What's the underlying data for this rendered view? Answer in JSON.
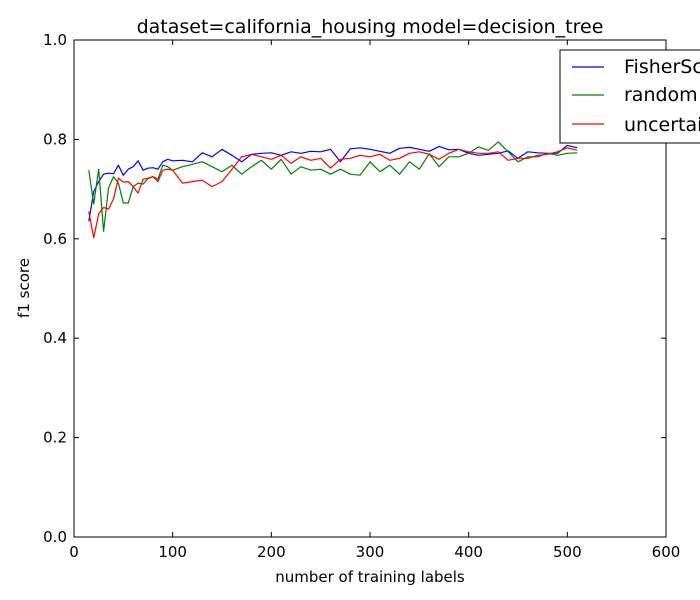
{
  "chart_data": {
    "type": "line",
    "title": "dataset=california_housing model=decision_tree",
    "xlabel": "number of training labels",
    "ylabel": "f1 score",
    "xlim": [
      0,
      600
    ],
    "ylim": [
      0.0,
      1.0
    ],
    "xticks": [
      "0",
      "100",
      "200",
      "300",
      "400",
      "500",
      "600"
    ],
    "yticks": [
      "0.0",
      "0.2",
      "0.4",
      "0.6",
      "0.8",
      "1.0"
    ],
    "grid": false,
    "legend_position": "top-right",
    "series": [
      {
        "name": "FisherScore",
        "color": "#0000ff",
        "x": [
          15,
          20,
          25,
          30,
          35,
          40,
          45,
          50,
          55,
          60,
          65,
          70,
          75,
          80,
          85,
          90,
          95,
          100,
          110,
          120,
          130,
          140,
          150,
          160,
          170,
          180,
          190,
          200,
          210,
          220,
          230,
          240,
          250,
          260,
          270,
          280,
          290,
          300,
          310,
          320,
          330,
          340,
          350,
          360,
          370,
          380,
          390,
          400,
          410,
          420,
          430,
          440,
          450,
          460,
          470,
          480,
          490,
          500,
          510
        ],
        "values": [
          0.635,
          0.695,
          0.715,
          0.73,
          0.732,
          0.731,
          0.748,
          0.728,
          0.74,
          0.745,
          0.757,
          0.738,
          0.742,
          0.743,
          0.74,
          0.755,
          0.76,
          0.757,
          0.758,
          0.755,
          0.773,
          0.765,
          0.78,
          0.768,
          0.755,
          0.77,
          0.772,
          0.773,
          0.768,
          0.775,
          0.772,
          0.776,
          0.775,
          0.78,
          0.755,
          0.781,
          0.783,
          0.78,
          0.776,
          0.772,
          0.782,
          0.784,
          0.78,
          0.776,
          0.786,
          0.779,
          0.78,
          0.772,
          0.768,
          0.77,
          0.772,
          0.777,
          0.762,
          0.775,
          0.773,
          0.772,
          0.772,
          0.788,
          0.783
        ]
      },
      {
        "name": "random",
        "color": "#008000",
        "x": [
          15,
          20,
          25,
          30,
          35,
          40,
          45,
          50,
          55,
          60,
          65,
          70,
          75,
          80,
          85,
          90,
          95,
          100,
          110,
          120,
          130,
          140,
          150,
          160,
          170,
          180,
          190,
          200,
          210,
          220,
          230,
          240,
          250,
          260,
          270,
          280,
          290,
          300,
          310,
          320,
          330,
          340,
          350,
          360,
          370,
          380,
          390,
          400,
          410,
          420,
          430,
          440,
          450,
          460,
          470,
          480,
          490,
          500,
          510
        ],
        "values": [
          0.738,
          0.67,
          0.74,
          0.615,
          0.702,
          0.725,
          0.712,
          0.672,
          0.672,
          0.705,
          0.712,
          0.71,
          0.721,
          0.725,
          0.72,
          0.748,
          0.745,
          0.738,
          0.745,
          0.75,
          0.755,
          0.745,
          0.735,
          0.748,
          0.73,
          0.745,
          0.758,
          0.74,
          0.76,
          0.73,
          0.745,
          0.738,
          0.74,
          0.73,
          0.74,
          0.73,
          0.728,
          0.755,
          0.735,
          0.748,
          0.73,
          0.755,
          0.74,
          0.771,
          0.745,
          0.765,
          0.765,
          0.772,
          0.785,
          0.778,
          0.795,
          0.775,
          0.755,
          0.765,
          0.765,
          0.772,
          0.768,
          0.772,
          0.773
        ]
      },
      {
        "name": "uncertainty",
        "color": "#ff0000",
        "x": [
          15,
          20,
          25,
          30,
          35,
          40,
          45,
          50,
          55,
          60,
          65,
          70,
          75,
          80,
          85,
          90,
          95,
          100,
          110,
          120,
          130,
          140,
          150,
          160,
          170,
          180,
          190,
          200,
          210,
          220,
          230,
          240,
          250,
          260,
          270,
          280,
          290,
          300,
          310,
          320,
          330,
          340,
          350,
          360,
          370,
          380,
          390,
          400,
          410,
          420,
          430,
          440,
          450,
          460,
          470,
          480,
          490,
          500,
          510
        ],
        "values": [
          0.655,
          0.602,
          0.65,
          0.663,
          0.66,
          0.68,
          0.722,
          0.714,
          0.715,
          0.705,
          0.692,
          0.72,
          0.722,
          0.725,
          0.715,
          0.738,
          0.74,
          0.738,
          0.712,
          0.715,
          0.718,
          0.705,
          0.715,
          0.74,
          0.765,
          0.77,
          0.765,
          0.76,
          0.768,
          0.752,
          0.765,
          0.758,
          0.762,
          0.742,
          0.76,
          0.762,
          0.768,
          0.765,
          0.77,
          0.758,
          0.762,
          0.772,
          0.775,
          0.77,
          0.76,
          0.772,
          0.78,
          0.775,
          0.772,
          0.772,
          0.775,
          0.758,
          0.762,
          0.762,
          0.768,
          0.77,
          0.775,
          0.783,
          0.778
        ]
      }
    ]
  }
}
